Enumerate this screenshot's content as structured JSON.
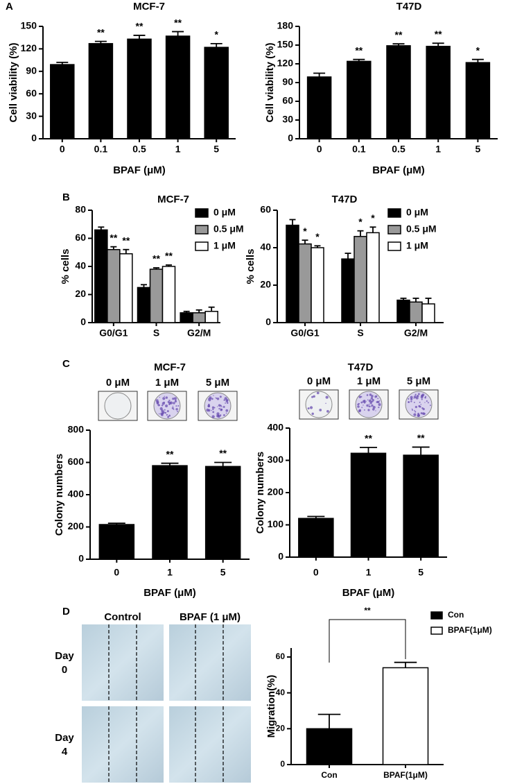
{
  "chart_data": [
    {
      "type": "bar",
      "panel": "A",
      "title": "MCF-7",
      "x_label": "BPAF (μM)",
      "y_label": "Cell viability (%)",
      "categories": [
        "0",
        "0.1",
        "0.5",
        "1",
        "5"
      ],
      "values": [
        99,
        127,
        133,
        137,
        122
      ],
      "errors": [
        3,
        3,
        5,
        6,
        5
      ],
      "annotations": [
        null,
        "**",
        "**",
        "**",
        "*"
      ],
      "color": "#000000",
      "ylim": [
        0,
        150
      ],
      "yticks": [
        0,
        30,
        60,
        90,
        120,
        150
      ]
    },
    {
      "type": "bar",
      "title": "T47D",
      "x_label": "BPAF (μM)",
      "y_label": "Cell viability (%)",
      "categories": [
        "0",
        "0.1",
        "0.5",
        "1",
        "5"
      ],
      "values": [
        99,
        124,
        149,
        148,
        122
      ],
      "errors": [
        6,
        3,
        3,
        5,
        5
      ],
      "annotations": [
        null,
        "**",
        "**",
        "**",
        "*"
      ],
      "color": "#000000",
      "ylim": [
        0,
        180
      ],
      "yticks": [
        0,
        30,
        60,
        90,
        120,
        150,
        180
      ]
    },
    {
      "type": "bar",
      "panel": "B",
      "title": "MCF-7",
      "y_label": "% cells",
      "categories": [
        "G0/G1",
        "S",
        "G2/M"
      ],
      "series": [
        {
          "name": "0 μM",
          "color": "#000000",
          "values": [
            66,
            25,
            7
          ],
          "errors": [
            2,
            2,
            1
          ]
        },
        {
          "name": "0.5 μM",
          "color": "#999999",
          "values": [
            52,
            38,
            7
          ],
          "errors": [
            2,
            1,
            2
          ],
          "annotations": [
            "**",
            "**",
            null
          ]
        },
        {
          "name": "1 μM",
          "color": "#ffffff",
          "values": [
            49,
            40,
            8
          ],
          "errors": [
            3,
            1,
            3
          ],
          "annotations": [
            "**",
            "**",
            null
          ]
        }
      ],
      "legend": "top-right",
      "ylim": [
        0,
        80
      ],
      "yticks": [
        0,
        20,
        40,
        60,
        80
      ]
    },
    {
      "type": "bar",
      "title": "T47D",
      "y_label": "% cells",
      "categories": [
        "G0/G1",
        "S",
        "G2/M"
      ],
      "series": [
        {
          "name": "0 μM",
          "color": "#000000",
          "values": [
            52,
            34,
            12
          ],
          "errors": [
            3,
            3,
            1
          ]
        },
        {
          "name": "0.5 μM",
          "color": "#999999",
          "values": [
            42,
            46,
            11
          ],
          "errors": [
            2,
            3,
            2
          ],
          "annotations": [
            "*",
            "*",
            null
          ]
        },
        {
          "name": "1 μM",
          "color": "#ffffff",
          "values": [
            40,
            48,
            10
          ],
          "errors": [
            1,
            3,
            3
          ],
          "annotations": [
            "*",
            "*",
            null
          ]
        }
      ],
      "legend": "top-right",
      "ylim": [
        0,
        60
      ],
      "yticks": [
        0,
        20,
        40,
        60
      ]
    },
    {
      "type": "bar",
      "panel": "C",
      "title": "MCF-7",
      "x_label": "BPAF (μM)",
      "y_label": "Colony numbers",
      "plate_labels": [
        "0 μM",
        "1 μM",
        "5 μM"
      ],
      "categories": [
        "0",
        "1",
        "5"
      ],
      "values": [
        215,
        580,
        575
      ],
      "errors": [
        8,
        15,
        25
      ],
      "annotations": [
        null,
        "**",
        "**"
      ],
      "color": "#000000",
      "ylim": [
        0,
        800
      ],
      "yticks": [
        0,
        200,
        400,
        600,
        800
      ]
    },
    {
      "type": "bar",
      "title": "T47D",
      "x_label": "BPAF (μM)",
      "y_label": "Colony numbers",
      "plate_labels": [
        "0 μM",
        "1 μM",
        "5 μM"
      ],
      "categories": [
        "0",
        "1",
        "5"
      ],
      "values": [
        120,
        322,
        316
      ],
      "errors": [
        6,
        18,
        25
      ],
      "annotations": [
        null,
        "**",
        "**"
      ],
      "color": "#000000",
      "ylim": [
        0,
        400
      ],
      "yticks": [
        0,
        100,
        200,
        300,
        400
      ]
    },
    {
      "type": "bar",
      "panel": "D",
      "y_label": "Migration(%)",
      "image_columns": [
        "Control",
        "BPAF (1 μM)"
      ],
      "image_rows": [
        [
          "Day",
          "0"
        ],
        [
          "Day",
          "4"
        ]
      ],
      "categories": [
        "Con",
        "BPAF(1μM)"
      ],
      "series": [
        {
          "name": "Con",
          "color": "#000000",
          "values": [
            20,
            null
          ],
          "errors": [
            8,
            null
          ]
        },
        {
          "name": "BPAF(1μM)",
          "color": "#ffffff",
          "values": [
            null,
            54
          ],
          "errors": [
            null,
            3
          ]
        }
      ],
      "comparison": "**",
      "legend": "top-right",
      "ylim": [
        0,
        65
      ],
      "yticks": [
        0,
        20,
        40,
        60
      ]
    }
  ]
}
